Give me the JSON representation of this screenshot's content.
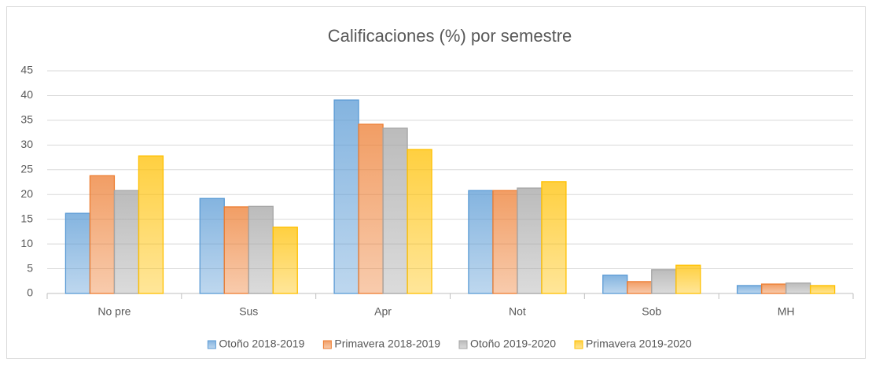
{
  "chart_data": {
    "type": "bar",
    "title": "Calificaciones  (%) por semestre",
    "categories": [
      "No pre",
      "Sus",
      "Apr",
      "Not",
      "Sob",
      "MH"
    ],
    "series": [
      {
        "name": "Otoño 2018-2019",
        "color": "#5b9bd5",
        "values": [
          16.2,
          19.2,
          39.1,
          20.8,
          3.7,
          1.6
        ]
      },
      {
        "name": "Primavera 2018-2019",
        "color": "#ed7d31",
        "values": [
          23.8,
          17.5,
          34.2,
          20.8,
          2.4,
          1.9
        ]
      },
      {
        "name": "Otoño 2019-2020",
        "color": "#a5a5a5",
        "values": [
          20.8,
          17.6,
          33.4,
          21.3,
          4.8,
          2.1
        ]
      },
      {
        "name": "Primavera 2019-2020",
        "color": "#ffc000",
        "values": [
          27.8,
          13.4,
          29.1,
          22.6,
          5.7,
          1.6
        ]
      }
    ],
    "ylim": [
      0,
      45
    ],
    "yticks": [
      0,
      5,
      10,
      15,
      20,
      25,
      30,
      35,
      40,
      45
    ],
    "grid": true,
    "legend": "bottom"
  }
}
